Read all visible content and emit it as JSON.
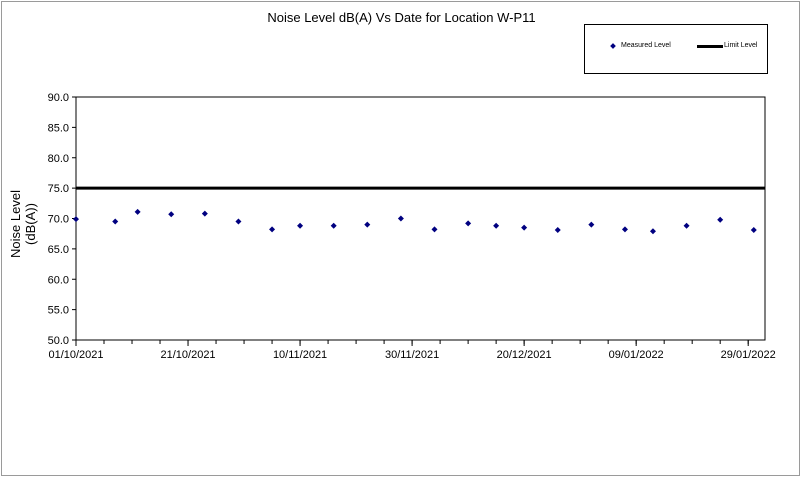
{
  "chart_data": {
    "type": "scatter",
    "title": "Noise Level dB(A) Vs Date for Location W-P11",
    "ylabel_line1": "Noise Level",
    "ylabel_line2": "(dB(A))",
    "xlabel": "",
    "ylim": [
      50.0,
      90.0
    ],
    "yticks": [
      "50.0",
      "55.0",
      "60.0",
      "65.0",
      "70.0",
      "75.0",
      "80.0",
      "85.0",
      "90.0"
    ],
    "xlim": [
      "2021-10-01",
      "2022-02-01"
    ],
    "xticks": [
      "01/10/2021",
      "21/10/2021",
      "10/11/2021",
      "30/11/2021",
      "20/12/2021",
      "09/01/2022",
      "29/01/2022"
    ],
    "legend_position": "top-right",
    "series": [
      {
        "name": "Measured Level",
        "marker": "diamond",
        "color": "#000080",
        "points": [
          {
            "x": "2021-10-01",
            "y": 69.9
          },
          {
            "x": "2021-10-08",
            "y": 69.5
          },
          {
            "x": "2021-10-12",
            "y": 71.1
          },
          {
            "x": "2021-10-18",
            "y": 70.7
          },
          {
            "x": "2021-10-24",
            "y": 70.8
          },
          {
            "x": "2021-10-30",
            "y": 69.5
          },
          {
            "x": "2021-11-05",
            "y": 68.2
          },
          {
            "x": "2021-11-10",
            "y": 68.8
          },
          {
            "x": "2021-11-16",
            "y": 68.8
          },
          {
            "x": "2021-11-22",
            "y": 69.0
          },
          {
            "x": "2021-11-28",
            "y": 70.0
          },
          {
            "x": "2021-12-04",
            "y": 68.2
          },
          {
            "x": "2021-12-10",
            "y": 69.2
          },
          {
            "x": "2021-12-15",
            "y": 68.8
          },
          {
            "x": "2021-12-20",
            "y": 68.5
          },
          {
            "x": "2021-12-26",
            "y": 68.1
          },
          {
            "x": "2022-01-01",
            "y": 69.0
          },
          {
            "x": "2022-01-07",
            "y": 68.2
          },
          {
            "x": "2022-01-12",
            "y": 67.9
          },
          {
            "x": "2022-01-18",
            "y": 68.8
          },
          {
            "x": "2022-01-24",
            "y": 69.8
          },
          {
            "x": "2022-01-30",
            "y": 68.1
          }
        ]
      },
      {
        "name": "Limit Level",
        "marker": "line",
        "color": "#000000",
        "value": 75.0
      }
    ]
  }
}
